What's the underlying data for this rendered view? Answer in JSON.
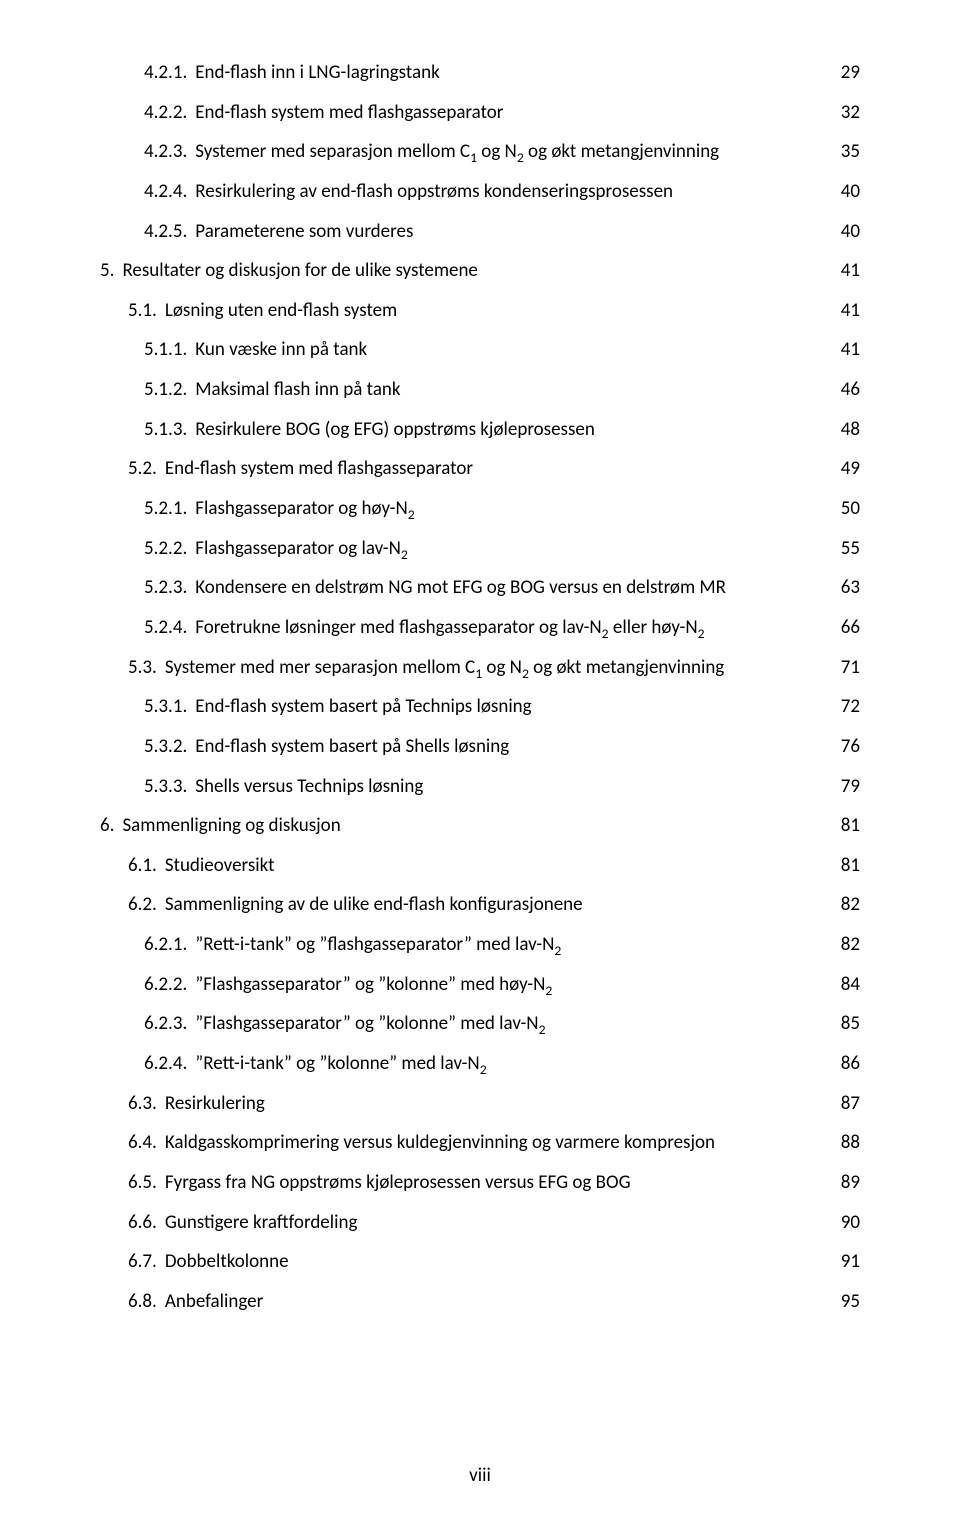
{
  "page_label": "viii",
  "entries": [
    {
      "indent": 2,
      "num": "4.2.1.",
      "title": "End-flash inn i LNG-lagringstank",
      "page": "29"
    },
    {
      "indent": 2,
      "num": "4.2.2.",
      "title": "End-flash system med flashgasseparator",
      "page": "32"
    },
    {
      "indent": 2,
      "num": "4.2.3.",
      "title": "Systemer med separasjon mellom C<sub>1</sub> og N<sub>2</sub> og økt metangjenvinning",
      "page": "35"
    },
    {
      "indent": 2,
      "num": "4.2.4.",
      "title": "Resirkulering av end-flash oppstrøms kondenseringsprosessen",
      "page": "40"
    },
    {
      "indent": 2,
      "num": "4.2.5.",
      "title": "Parameterene som vurderes",
      "page": "40"
    },
    {
      "indent": 0,
      "num": "5.",
      "title": "Resultater og diskusjon for de ulike systemene",
      "page": "41"
    },
    {
      "indent": 1,
      "num": "5.1.",
      "title": "Løsning uten end-flash system",
      "page": "41"
    },
    {
      "indent": 2,
      "num": "5.1.1.",
      "title": "Kun væske inn på tank",
      "page": "41"
    },
    {
      "indent": 2,
      "num": "5.1.2.",
      "title": "Maksimal flash inn på tank",
      "page": "46"
    },
    {
      "indent": 2,
      "num": "5.1.3.",
      "title": "Resirkulere BOG (og EFG) oppstrøms kjøleprosessen",
      "page": "48"
    },
    {
      "indent": 1,
      "num": "5.2.",
      "title": "End-flash system med flashgasseparator",
      "page": "49"
    },
    {
      "indent": 2,
      "num": "5.2.1.",
      "title": "Flashgasseparator og høy-N<sub>2</sub>",
      "page": "50"
    },
    {
      "indent": 2,
      "num": "5.2.2.",
      "title": "Flashgasseparator og lav-N<sub>2</sub>",
      "page": "55"
    },
    {
      "indent": 2,
      "num": "5.2.3.",
      "title": "Kondensere en delstrøm NG mot EFG og BOG versus en delstrøm MR",
      "page": "63"
    },
    {
      "indent": 2,
      "num": "5.2.4.",
      "title": "Foretrukne løsninger med flashgasseparator og lav-N<sub>2</sub> eller høy-N<sub>2</sub>",
      "page": "66"
    },
    {
      "indent": 1,
      "num": "5.3.",
      "title": "Systemer med mer separasjon mellom C<sub>1</sub> og N<sub>2</sub> og økt metangjenvinning",
      "page": "71"
    },
    {
      "indent": 2,
      "num": "5.3.1.",
      "title": "End-flash system basert på Technips løsning",
      "page": "72"
    },
    {
      "indent": 2,
      "num": "5.3.2.",
      "title": "End-flash system basert på Shells løsning",
      "page": "76"
    },
    {
      "indent": 2,
      "num": "5.3.3.",
      "title": "Shells versus Technips løsning",
      "page": "79"
    },
    {
      "indent": 0,
      "num": "6.",
      "title": "Sammenligning og diskusjon",
      "page": "81"
    },
    {
      "indent": 1,
      "num": "6.1.",
      "title": "Studieoversikt",
      "page": "81"
    },
    {
      "indent": 1,
      "num": "6.2.",
      "title": "Sammenligning av de ulike end-flash konfigurasjonene",
      "page": "82"
    },
    {
      "indent": 2,
      "num": "6.2.1.",
      "title": "”Rett-i-tank” og ”flashgasseparator” med lav-N<sub>2</sub>",
      "page": "82"
    },
    {
      "indent": 2,
      "num": "6.2.2.",
      "title": "”Flashgasseparator” og ”kolonne” med høy-N<sub>2</sub>",
      "page": "84"
    },
    {
      "indent": 2,
      "num": "6.2.3.",
      "title": "”Flashgasseparator” og ”kolonne” med lav-N<sub>2</sub>",
      "page": "85"
    },
    {
      "indent": 2,
      "num": "6.2.4.",
      "title": "”Rett-i-tank” og ”kolonne” med lav-N<sub>2</sub>",
      "page": "86"
    },
    {
      "indent": 1,
      "num": "6.3.",
      "title": "Resirkulering",
      "page": "87"
    },
    {
      "indent": 1,
      "num": "6.4.",
      "title": "Kaldgasskomprimering versus kuldegjenvinning og varmere kompresjon",
      "page": "88"
    },
    {
      "indent": 1,
      "num": "6.5.",
      "title": "Fyrgass fra NG oppstrøms kjøleprosessen versus EFG og BOG",
      "page": "89"
    },
    {
      "indent": 1,
      "num": "6.6.",
      "title": "Gunstigere kraftfordeling",
      "page": "90"
    },
    {
      "indent": 1,
      "num": "6.7.",
      "title": "Dobbeltkolonne",
      "page": "91"
    },
    {
      "indent": 1,
      "num": "6.8.",
      "title": "Anbefalinger",
      "page": "95"
    }
  ]
}
